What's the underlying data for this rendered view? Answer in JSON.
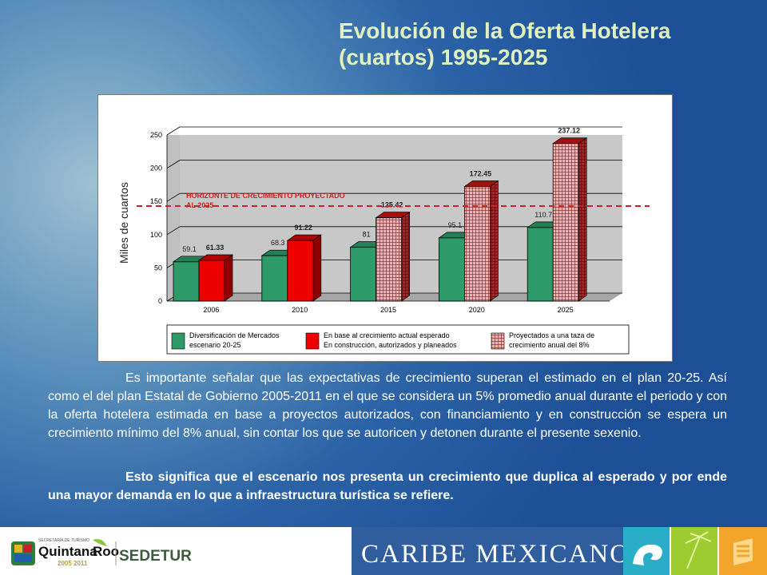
{
  "title_line1": "Evolución de la Oferta Hotelera",
  "title_line2": "(cuartos) 1995-2025",
  "chart_data": {
    "type": "bar",
    "categories": [
      "2006",
      "2010",
      "2015",
      "2020",
      "2025"
    ],
    "ylabel": "Miles de cuartos",
    "ylim": [
      0,
      250
    ],
    "yticks": [
      0,
      50,
      100,
      150,
      200,
      250
    ],
    "grid": true,
    "series": [
      {
        "name": "Diversificación de Mercados escenario 20-25",
        "values": [
          59.1,
          68.3,
          81,
          95.1,
          110.7
        ],
        "labels": [
          "59.1",
          "68.3",
          "81",
          "95.1",
          "110.7"
        ],
        "color": "#2e9a6a",
        "pattern": "solid"
      },
      {
        "name": "En base al crecimiento actual esperado En construcción, autorizados y planeados",
        "values": [
          61.33,
          91.22,
          null,
          null,
          null
        ],
        "labels": [
          "61.33",
          "91.22",
          "",
          "",
          ""
        ],
        "color": "#e00000",
        "pattern": "solid"
      },
      {
        "name": "Proyectados a una taza de crecimiento anual del 8%",
        "values": [
          null,
          null,
          125.42,
          172.45,
          237.12
        ],
        "labels": [
          "",
          "",
          "125.42",
          "172.45",
          "237.12"
        ],
        "color": "#e00000",
        "pattern": "grid"
      }
    ],
    "annotation": {
      "text1": "HORIZONTE DE CRECIMIENTO PROYECTADO",
      "text2": "AL 2025",
      "y": 143,
      "color": "#d42020"
    },
    "legend": [
      {
        "line1": "Diversificación de Mercados",
        "line2": "escenario 20-25"
      },
      {
        "line1": "En base al crecimiento actual esperado",
        "line2": "En construcción, autorizados y planeados"
      },
      {
        "line1": "Proyectados a una taza de",
        "line2": "crecimiento anual del 8%"
      }
    ],
    "legend_position": "bottom"
  },
  "paragraph1": "Es importante señalar que las expectativas de crecimiento superan el estimado en el plan 20-25. Así como el del plan Estatal de Gobierno 2005-2011 en el que se considera un 5% promedio anual durante el periodo y con la oferta hotelera estimada en base a proyectos autorizados, con financiamiento y en construcción se espera un crecimiento mínimo del 8% anual, sin contar los que se autoricen y detonen durante el presente sexenio.",
  "paragraph2": "Esto significa que el escenario nos presenta un crecimiento que duplica al esperado y por ende una mayor demanda en lo que a infraestructura turística se refiere.",
  "footer": {
    "secretaria": "SECRETARÍA DE TURISMO",
    "quintana": "Quintana",
    "roo": "Roo",
    "years": "2005 2011",
    "sedetur": "SEDETUR",
    "caribe": "CARIBE MEXICANO"
  }
}
